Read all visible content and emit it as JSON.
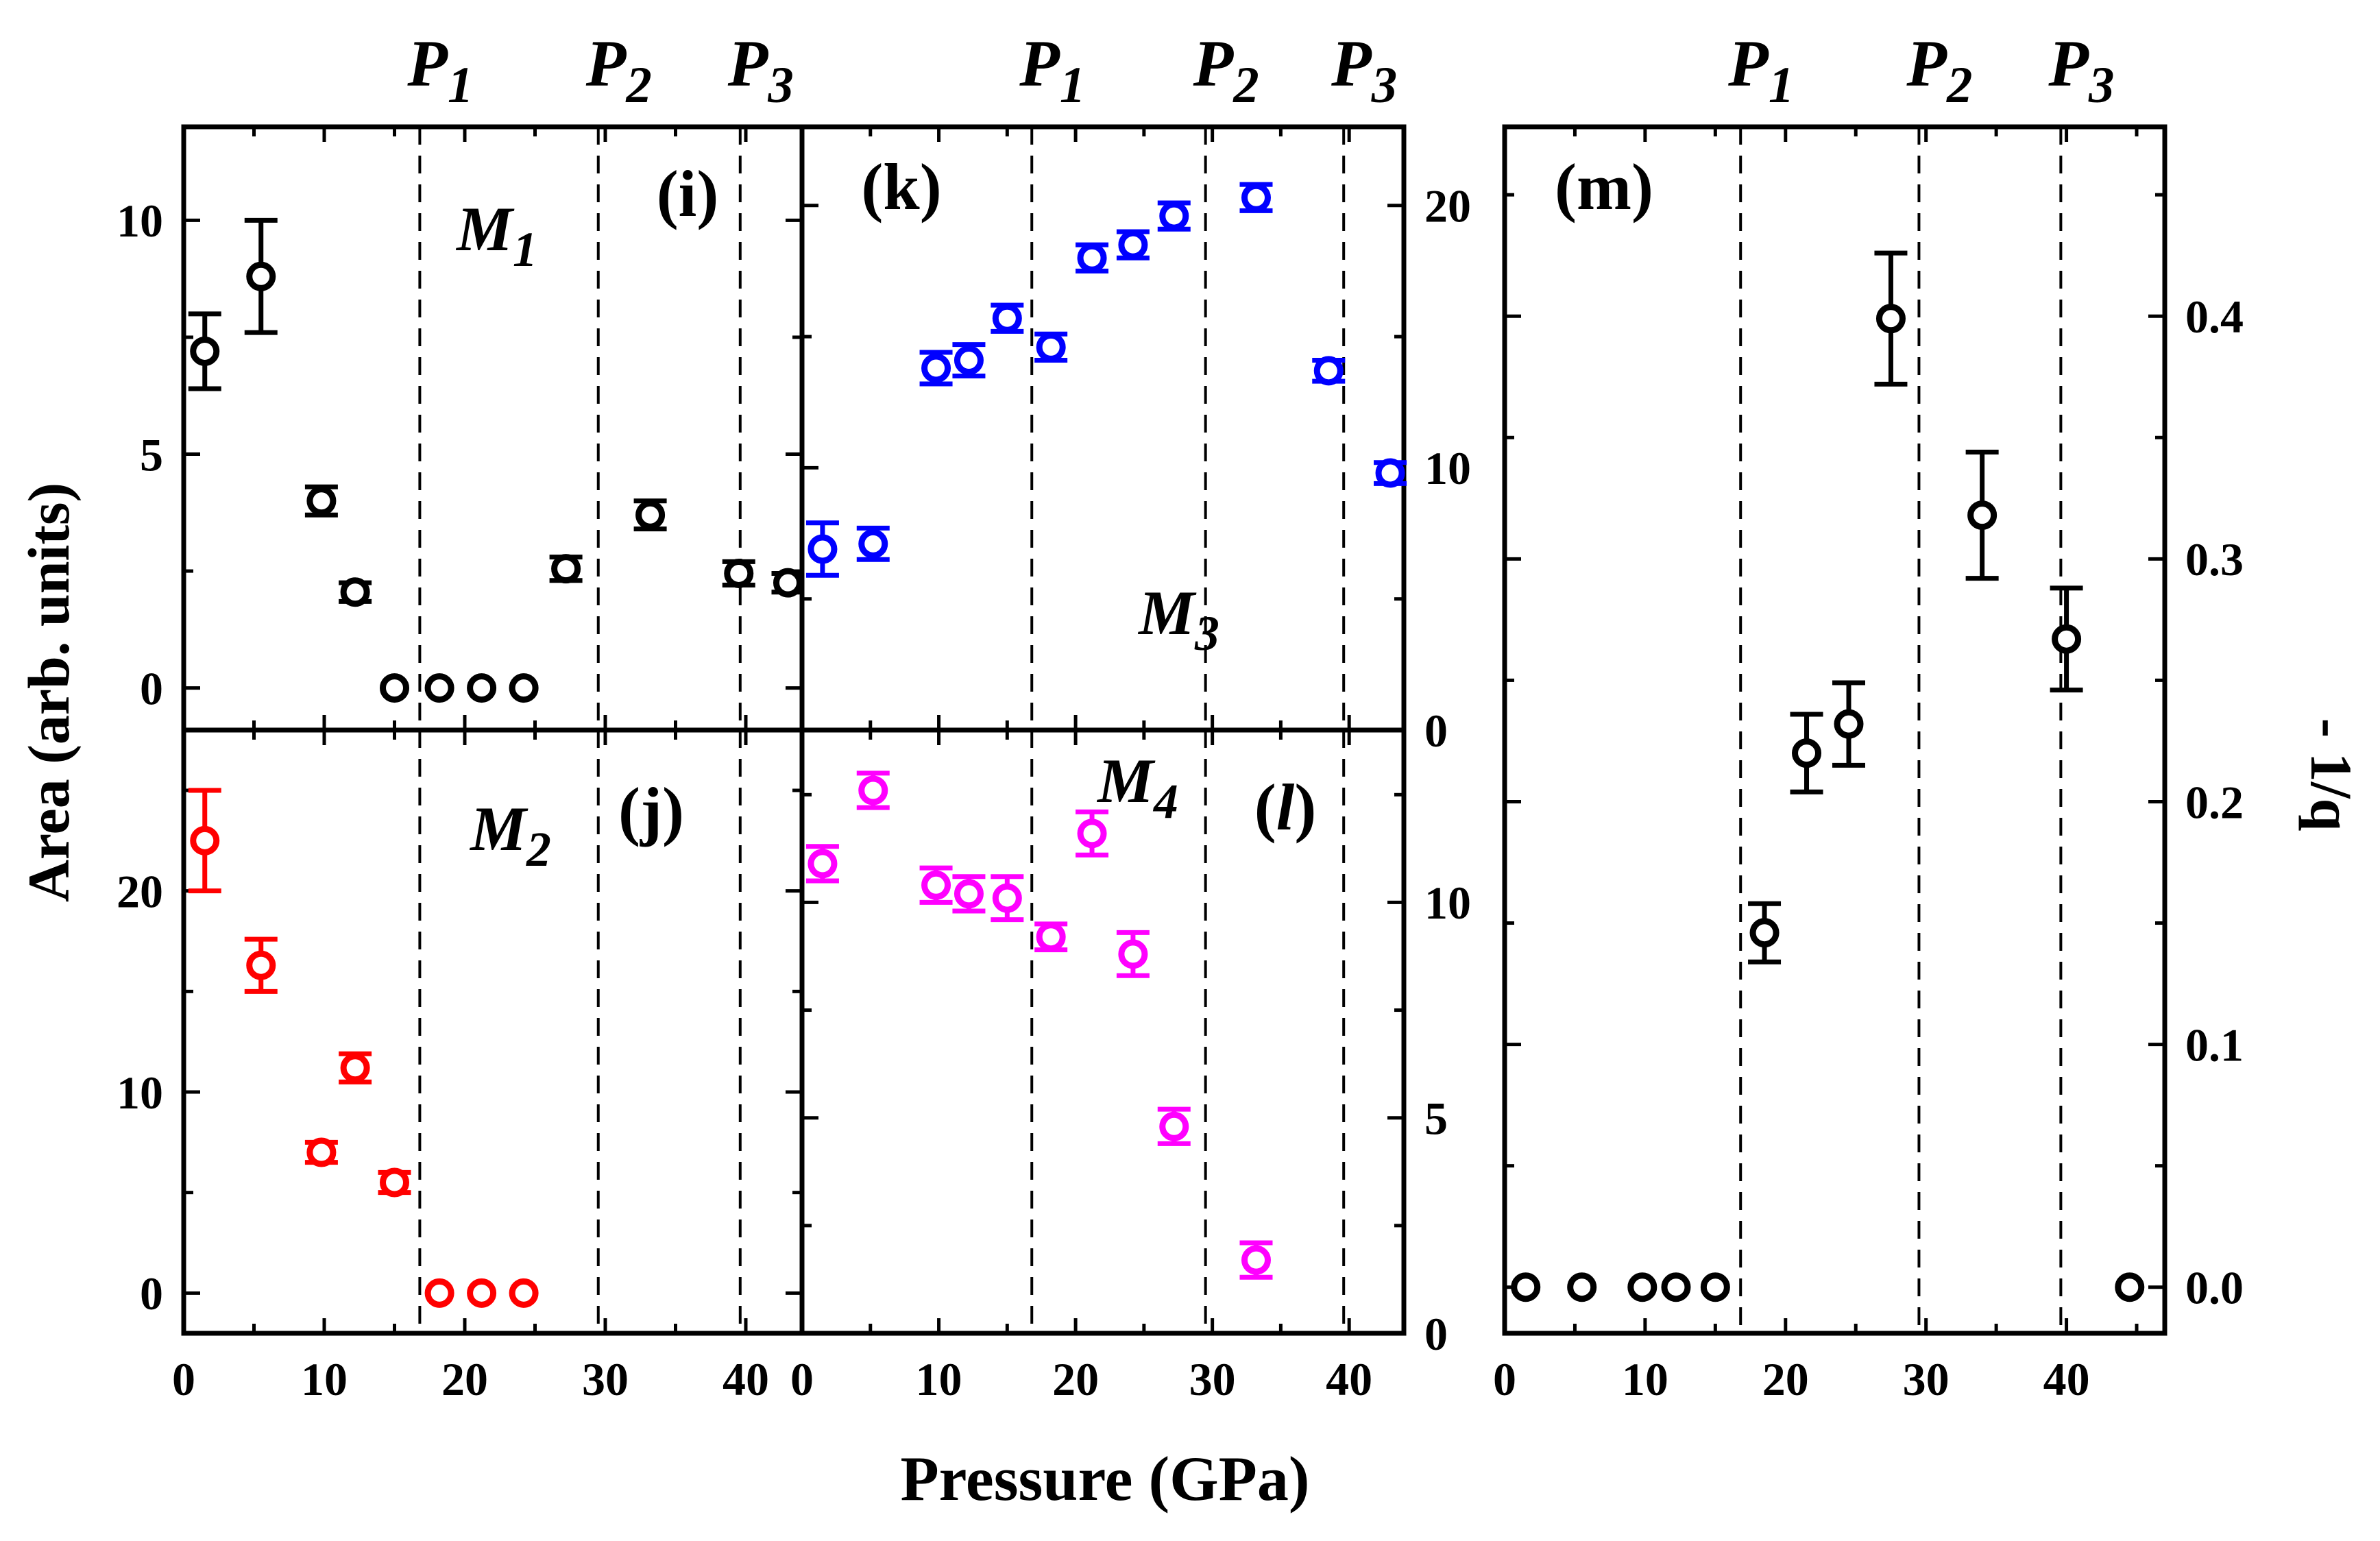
{
  "figure": {
    "xlabel": "Pressure (GPa)",
    "ylabel_left": "Area (arb. units)",
    "ylabel_right": "- 1/q",
    "markers": [
      {
        "name": "P",
        "sub": "1",
        "pressure": 16.8
      },
      {
        "name": "P",
        "sub": "2",
        "pressure": 29.5
      },
      {
        "name": "P",
        "sub": "3",
        "pressure": 39.6
      }
    ]
  },
  "chart_data": [
    {
      "id": "i",
      "type": "scatter",
      "panel_label": "(i)",
      "mode": "M",
      "mode_sub": "1",
      "color": "#000000",
      "xlim": [
        0,
        44
      ],
      "ylim": [
        -0.9,
        12.0
      ],
      "x_ticks": [],
      "y_ticks": [
        0,
        5,
        10
      ],
      "y_tick_side": "left",
      "series": [
        {
          "name": "M1",
          "points": [
            {
              "x": 1.5,
              "y": 7.2,
              "err": 0.8
            },
            {
              "x": 5.5,
              "y": 8.8,
              "err": 1.2
            },
            {
              "x": 9.8,
              "y": 4.0,
              "err": 0.3
            },
            {
              "x": 12.2,
              "y": 2.05,
              "err": 0.2
            },
            {
              "x": 15.0,
              "y": 0.0,
              "err": 0
            },
            {
              "x": 18.2,
              "y": 0.0,
              "err": 0
            },
            {
              "x": 21.2,
              "y": 0.0,
              "err": 0
            },
            {
              "x": 24.2,
              "y": 0.0,
              "err": 0
            },
            {
              "x": 27.2,
              "y": 2.55,
              "err": 0.25
            },
            {
              "x": 33.2,
              "y": 3.7,
              "err": 0.3
            },
            {
              "x": 39.5,
              "y": 2.45,
              "err": 0.25
            },
            {
              "x": 43.0,
              "y": 2.25,
              "err": 0.2
            }
          ]
        }
      ]
    },
    {
      "id": "j",
      "type": "scatter",
      "panel_label": "(j)",
      "mode": "M",
      "mode_sub": "2",
      "color": "#ff0000",
      "xlim": [
        0,
        44
      ],
      "ylim": [
        -2.0,
        28.0
      ],
      "x_ticks": [
        0,
        10,
        20,
        30,
        40
      ],
      "y_ticks": [
        0,
        10,
        20
      ],
      "y_tick_side": "left",
      "series": [
        {
          "name": "M2",
          "points": [
            {
              "x": 1.5,
              "y": 22.5,
              "err": 2.5
            },
            {
              "x": 5.5,
              "y": 16.3,
              "err": 1.3
            },
            {
              "x": 9.8,
              "y": 7.0,
              "err": 0.5
            },
            {
              "x": 12.2,
              "y": 11.2,
              "err": 0.7
            },
            {
              "x": 15.0,
              "y": 5.5,
              "err": 0.5
            },
            {
              "x": 18.2,
              "y": 0.0,
              "err": 0
            },
            {
              "x": 21.2,
              "y": 0.0,
              "err": 0
            },
            {
              "x": 24.2,
              "y": 0.0,
              "err": 0
            }
          ]
        }
      ]
    },
    {
      "id": "k",
      "type": "scatter",
      "panel_label": "(k)",
      "mode": "M",
      "mode_sub": "3",
      "color": "#0000ff",
      "xlim": [
        0,
        44
      ],
      "ylim": [
        0,
        23
      ],
      "x_ticks": [],
      "y_ticks": [
        0,
        10,
        20
      ],
      "y_tick_side": "right",
      "series": [
        {
          "name": "M3",
          "points": [
            {
              "x": 1.5,
              "y": 6.9,
              "err": 1.0
            },
            {
              "x": 5.2,
              "y": 7.1,
              "err": 0.6
            },
            {
              "x": 9.8,
              "y": 13.8,
              "err": 0.6
            },
            {
              "x": 12.2,
              "y": 14.1,
              "err": 0.6
            },
            {
              "x": 15.0,
              "y": 15.7,
              "err": 0.5
            },
            {
              "x": 18.2,
              "y": 14.6,
              "err": 0.5
            },
            {
              "x": 21.2,
              "y": 18.0,
              "err": 0.5
            },
            {
              "x": 24.2,
              "y": 18.5,
              "err": 0.5
            },
            {
              "x": 27.2,
              "y": 19.6,
              "err": 0.5
            },
            {
              "x": 33.2,
              "y": 20.3,
              "err": 0.5
            },
            {
              "x": 38.5,
              "y": 13.7,
              "err": 0.4
            },
            {
              "x": 43.0,
              "y": 9.8,
              "err": 0.4
            }
          ]
        }
      ]
    },
    {
      "id": "l",
      "type": "scatter",
      "panel_label": "(l)",
      "mode": "M",
      "mode_sub": "4",
      "color": "#ff00ff",
      "xlim": [
        0,
        44
      ],
      "ylim": [
        0,
        14
      ],
      "x_ticks": [
        0,
        10,
        20,
        30,
        40
      ],
      "y_ticks": [
        0,
        5,
        10
      ],
      "y_tick_side": "right",
      "series": [
        {
          "name": "M4",
          "points": [
            {
              "x": 1.5,
              "y": 10.9,
              "err": 0.4
            },
            {
              "x": 5.2,
              "y": 12.6,
              "err": 0.4
            },
            {
              "x": 9.8,
              "y": 10.4,
              "err": 0.4
            },
            {
              "x": 12.2,
              "y": 10.2,
              "err": 0.4
            },
            {
              "x": 15.0,
              "y": 10.1,
              "err": 0.5
            },
            {
              "x": 18.2,
              "y": 9.2,
              "err": 0.3
            },
            {
              "x": 21.2,
              "y": 11.6,
              "err": 0.5
            },
            {
              "x": 24.2,
              "y": 8.8,
              "err": 0.5
            },
            {
              "x": 27.2,
              "y": 4.8,
              "err": 0.4
            },
            {
              "x": 33.2,
              "y": 1.7,
              "err": 0.4
            }
          ]
        }
      ]
    },
    {
      "id": "m",
      "type": "scatter",
      "panel_label": "(m)",
      "color": "#000000",
      "xlim": [
        0,
        47
      ],
      "ylim": [
        -0.019,
        0.478
      ],
      "x_ticks": [
        0,
        10,
        20,
        30,
        40
      ],
      "y_ticks": [
        0.0,
        0.1,
        0.2,
        0.3,
        0.4
      ],
      "y_tick_side": "right",
      "series": [
        {
          "name": "-1/q",
          "points": [
            {
              "x": 1.5,
              "y": 0.0,
              "err": 0
            },
            {
              "x": 5.5,
              "y": 0.0,
              "err": 0
            },
            {
              "x": 9.8,
              "y": 0.0,
              "err": 0
            },
            {
              "x": 12.2,
              "y": 0.0,
              "err": 0
            },
            {
              "x": 15.0,
              "y": 0.0,
              "err": 0
            },
            {
              "x": 18.5,
              "y": 0.146,
              "err": 0.012
            },
            {
              "x": 21.5,
              "y": 0.22,
              "err": 0.016
            },
            {
              "x": 24.5,
              "y": 0.232,
              "err": 0.017
            },
            {
              "x": 27.5,
              "y": 0.399,
              "err": 0.027
            },
            {
              "x": 34.0,
              "y": 0.318,
              "err": 0.026
            },
            {
              "x": 40.0,
              "y": 0.267,
              "err": 0.021
            },
            {
              "x": 44.5,
              "y": 0.0,
              "err": 0
            }
          ]
        }
      ]
    }
  ]
}
